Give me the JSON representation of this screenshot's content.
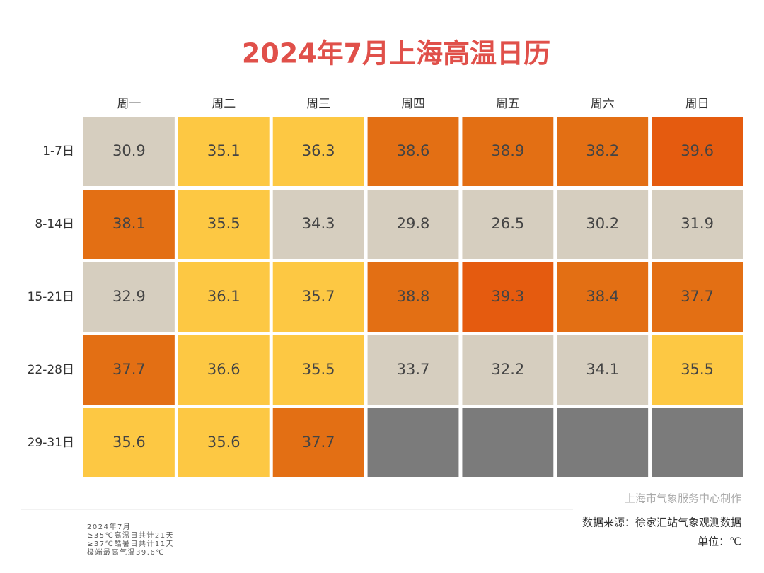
{
  "chart_data": {
    "type": "heatmap",
    "title": "2024年7月上海高温日历",
    "x_categories": [
      "周一",
      "周二",
      "周三",
      "周四",
      "周五",
      "周六",
      "周日"
    ],
    "y_categories": [
      "1-7日",
      "8-14日",
      "15-21日",
      "22-28日",
      "29-31日"
    ],
    "values": [
      [
        30.9,
        35.1,
        36.3,
        38.6,
        38.9,
        38.2,
        39.6
      ],
      [
        38.1,
        35.5,
        34.3,
        29.8,
        26.5,
        30.2,
        31.9
      ],
      [
        32.9,
        36.1,
        35.7,
        38.8,
        39.3,
        38.4,
        37.7
      ],
      [
        37.7,
        36.6,
        35.5,
        33.7,
        32.2,
        34.1,
        35.5
      ],
      [
        35.6,
        35.6,
        37.7,
        null,
        null,
        null,
        null
      ]
    ],
    "colors": [
      [
        "#d6cebf",
        "#fdc843",
        "#fdc843",
        "#e36f14",
        "#e36f14",
        "#e36f14",
        "#e55b0f"
      ],
      [
        "#e36f14",
        "#fdc843",
        "#d6cebf",
        "#d6cebf",
        "#d6cebf",
        "#d6cebf",
        "#d6cebf"
      ],
      [
        "#d6cebf",
        "#fdc843",
        "#fdc843",
        "#e36f14",
        "#e55b0f",
        "#e36f14",
        "#e36f14"
      ],
      [
        "#e36f14",
        "#fdc843",
        "#fdc843",
        "#d6cebf",
        "#d6cebf",
        "#d6cebf",
        "#fdc843"
      ],
      [
        "#fdc843",
        "#fdc843",
        "#e36f14",
        "#7b7b7b",
        "#7b7b7b",
        "#7b7b7b",
        "#7b7b7b"
      ]
    ],
    "notes": [
      "2024年7月",
      "≥35℃高温日共计21天",
      "≥37℃酷暑日共计11天",
      "极端最高气温39.6℃"
    ],
    "credit": "上海市气象服务中心制作",
    "source": "数据来源：徐家汇站气象观测数据",
    "unit": "单位：℃"
  }
}
